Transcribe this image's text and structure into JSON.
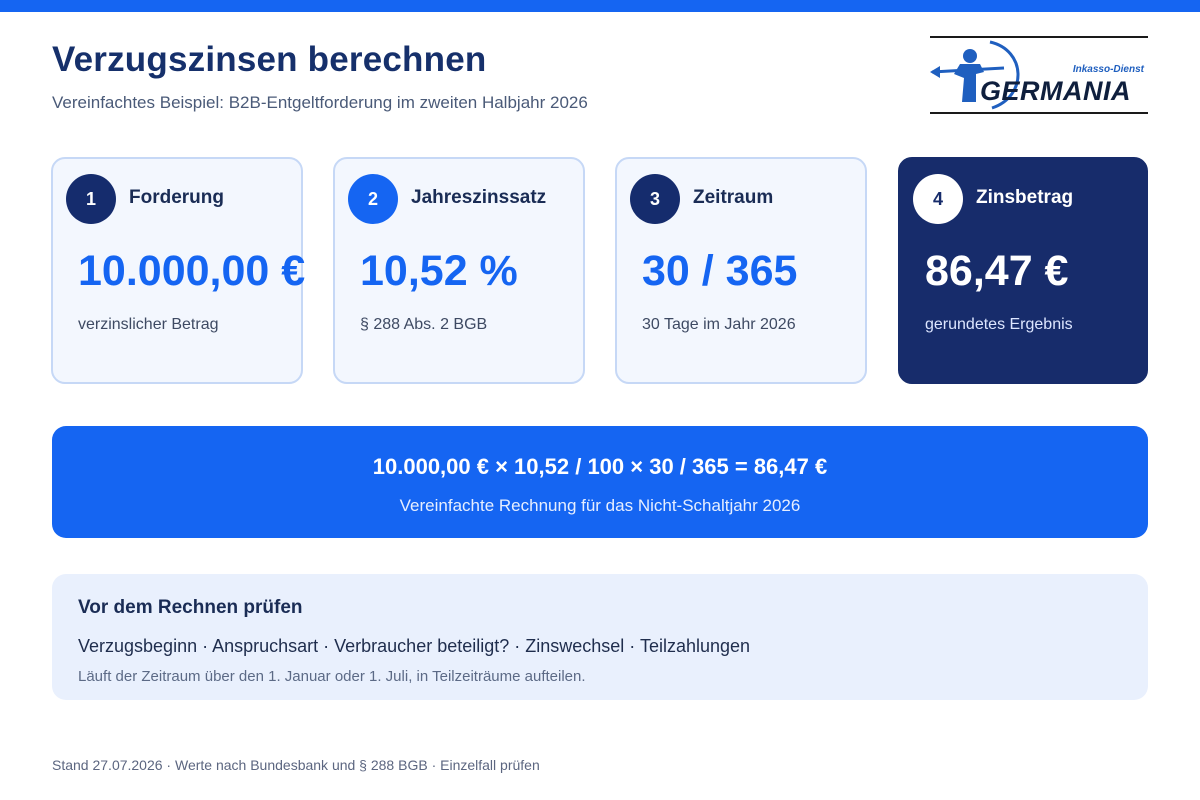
{
  "header": {
    "title": "Verzugszinsen berechnen",
    "subtitle": "Vereinfachtes Beispiel: B2B-Entgeltforderung im zweiten Halbjahr 2026"
  },
  "logo": {
    "tagline": "Inkasso-Dienst",
    "wordmark": "GERMANIA",
    "colors": {
      "blue": "#1f5fbf",
      "black": "#0f1f3d"
    }
  },
  "cards": [
    {
      "number": "1",
      "label": "Forderung",
      "value": "10.000,00 €",
      "note": "verzinslicher Betrag"
    },
    {
      "number": "2",
      "label": "Jahreszinssatz",
      "value": "10,52 %",
      "note": "§ 288 Abs. 2 BGB"
    },
    {
      "number": "3",
      "label": "Zeitraum",
      "value": "30 / 365",
      "note": "30 Tage im Jahr 2026"
    },
    {
      "number": "4",
      "label": "Zinsbetrag",
      "value": "86,47 €",
      "note": "gerundetes Ergebnis"
    }
  ],
  "formula": {
    "text": "10.000,00 € × 10,52 / 100 × 30 / 365 = 86,47 €",
    "note": "Vereinfachte Rechnung für das Nicht-Schaltjahr 2026"
  },
  "checklist": {
    "title": "Vor dem Rechnen prüfen",
    "items": "Verzugsbeginn · Anspruchsart · Verbraucher beteiligt? · Zinswechsel · Teilzahlungen",
    "note": "Läuft der Zeitraum über den 1. Januar oder 1. Juli, in Teilzeiträume aufteilen."
  },
  "footer": "Stand 27.07.2026 · Werte nach Bundesbank und § 288 BGB · Einzelfall prüfen",
  "colors": {
    "accent": "#1565f2",
    "navy": "#172c6b",
    "card_bg": "#f3f7fe",
    "card_border": "#c6d8f6",
    "check_bg": "#e9f0fd"
  }
}
